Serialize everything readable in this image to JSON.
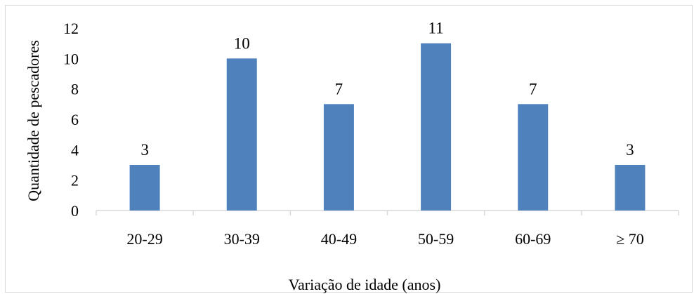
{
  "chart_data": {
    "type": "bar",
    "title": "",
    "xlabel": "Variação de idade (anos)",
    "ylabel": "Quantidade de pescadores",
    "categories": [
      "20-29",
      "30-39",
      "40-49",
      "50-59",
      "60-69",
      "≥ 70"
    ],
    "values": [
      3,
      10,
      7,
      11,
      7,
      3
    ],
    "data_labels": [
      "3",
      "10",
      "7",
      "11",
      "7",
      "3"
    ],
    "ylim": [
      0,
      12
    ],
    "yticks": [
      "0",
      "2",
      "4",
      "6",
      "8",
      "10",
      "12"
    ],
    "grid": false,
    "legend": "none",
    "bar_color": "#4f81bd",
    "axis_color": "#d9d9d9"
  }
}
